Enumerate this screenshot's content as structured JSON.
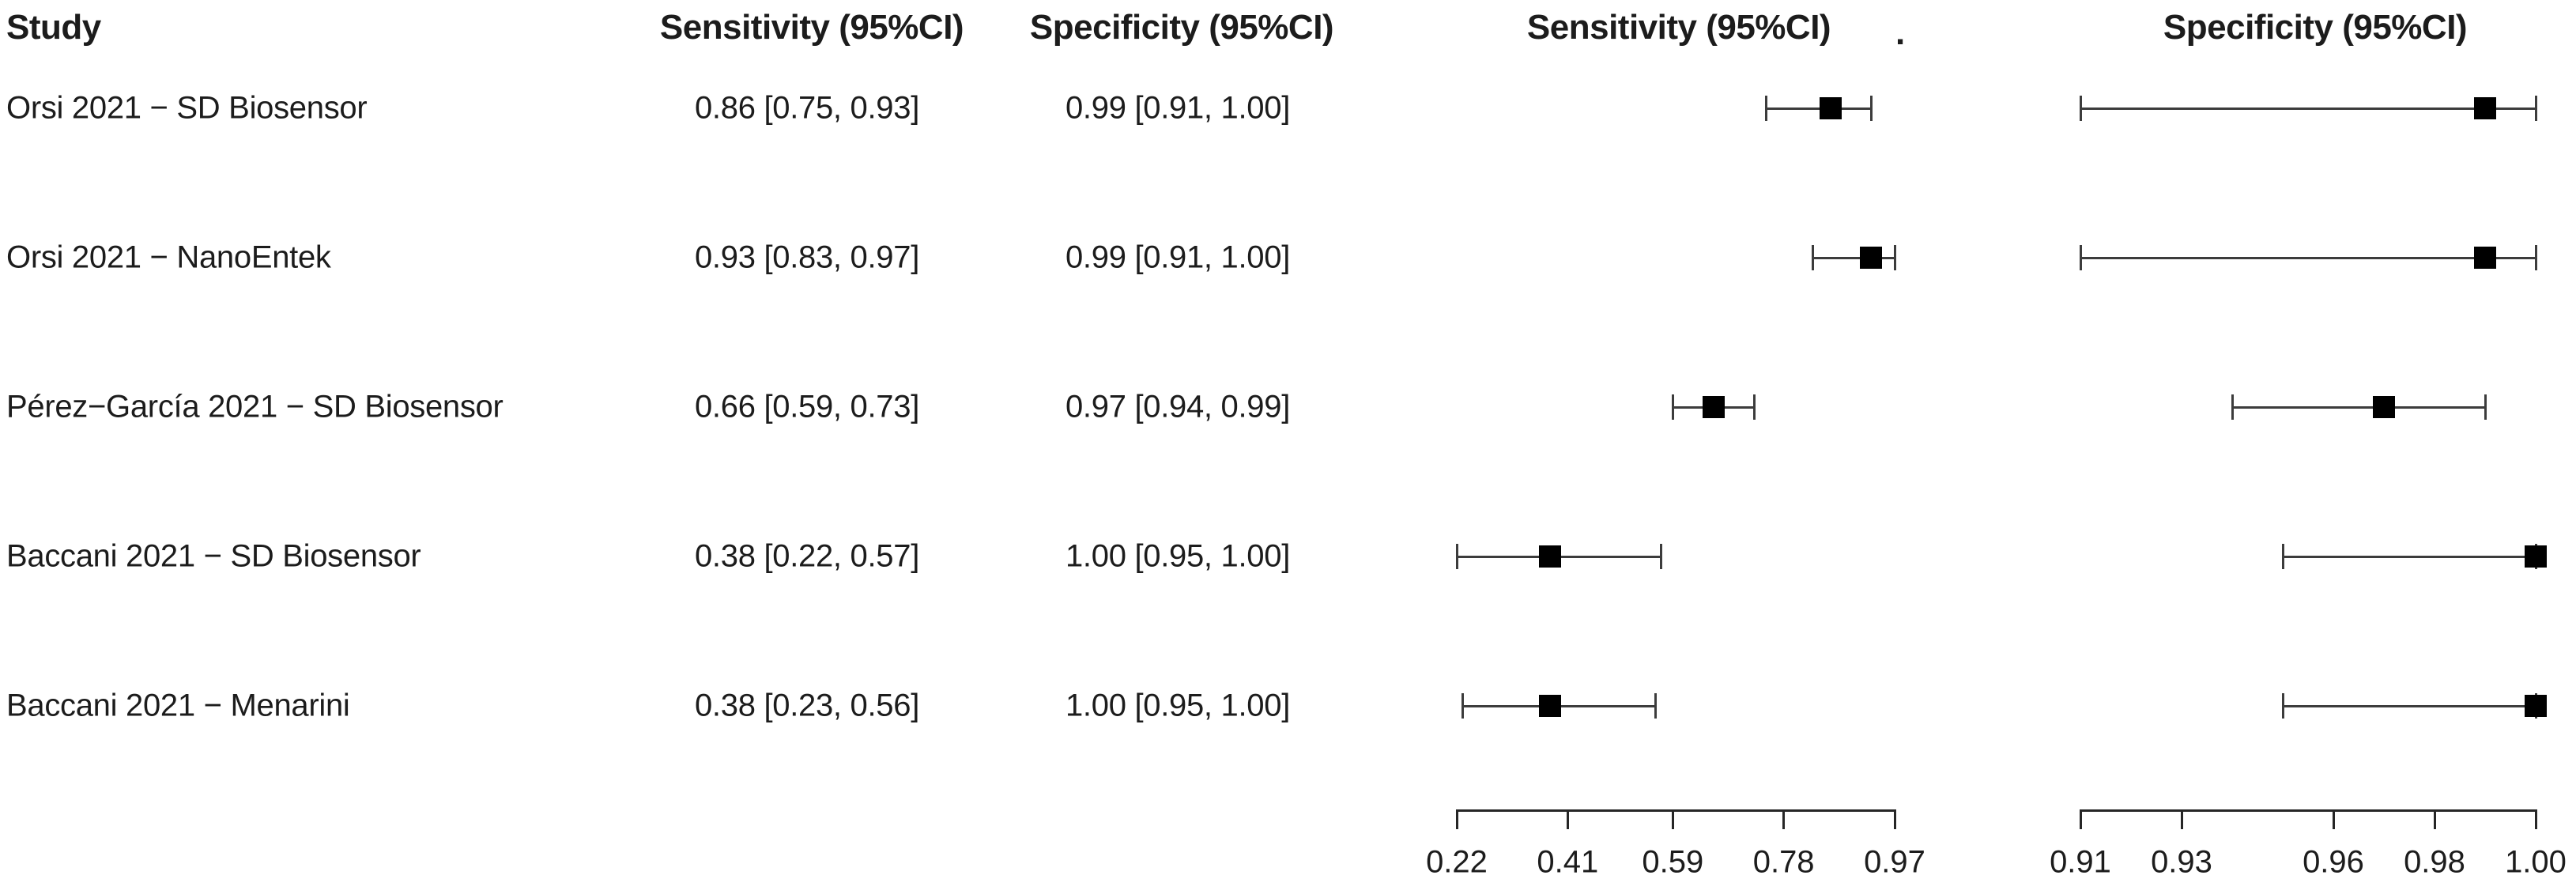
{
  "header": {
    "study": "Study",
    "sensitivity_text_col": "Sensitivity (95%CI)",
    "specificity_text_col": "Specificity (95%CI)",
    "sensitivity_plot_col": "Sensitivity (95%CI)",
    "stray_dot": ".",
    "specificity_plot_col": "Specificity (95%CI)"
  },
  "colors": {
    "background": "#ffffff",
    "text": "#1c1c1c",
    "ci_line": "#3c3c3c",
    "marker": "#000000",
    "axis": "#262626"
  },
  "chart_data": {
    "type": "forest",
    "title": "",
    "columns": [
      "Study",
      "Sensitivity (95%CI)",
      "Specificity (95%CI)"
    ],
    "studies": [
      "Orsi 2021 − SD Biosensor",
      "Orsi 2021 − NanoEntek",
      "Pérez−García 2021 − SD Biosensor",
      "Baccani 2021 − SD Biosensor",
      "Baccani 2021 − Menarini"
    ],
    "series": [
      {
        "name": "Sensitivity (95%CI)",
        "estimates": [
          0.86,
          0.93,
          0.66,
          0.38,
          0.38
        ],
        "ci_lower": [
          0.75,
          0.83,
          0.59,
          0.22,
          0.23
        ],
        "ci_upper": [
          0.93,
          0.97,
          0.73,
          0.57,
          0.56
        ],
        "labels": [
          "0.86 [0.75, 0.93]",
          "0.93 [0.83, 0.97]",
          "0.66 [0.59, 0.73]",
          "0.38 [0.22, 0.57]",
          "0.38 [0.23, 0.56]"
        ],
        "xlim": [
          0.22,
          0.97
        ],
        "axis_ticks": [
          0.22,
          0.41,
          0.59,
          0.78,
          0.97
        ],
        "axis_tick_labels": [
          "0.22",
          "0.41",
          "0.59",
          "0.78",
          "0.97"
        ]
      },
      {
        "name": "Specificity (95%CI)",
        "estimates": [
          0.99,
          0.99,
          0.97,
          1.0,
          1.0
        ],
        "ci_lower": [
          0.91,
          0.91,
          0.94,
          0.95,
          0.95
        ],
        "ci_upper": [
          1.0,
          1.0,
          0.99,
          1.0,
          1.0
        ],
        "labels": [
          "0.99 [0.91, 1.00]",
          "0.99 [0.91, 1.00]",
          "0.97 [0.94, 0.99]",
          "1.00 [0.95, 1.00]",
          "1.00 [0.95, 1.00]"
        ],
        "xlim": [
          0.91,
          1.0
        ],
        "axis_ticks": [
          0.91,
          0.93,
          0.96,
          0.98,
          1.0
        ],
        "axis_tick_labels": [
          "0.91",
          "0.93",
          "0.96",
          "0.98",
          "1.00"
        ]
      }
    ],
    "legend": "none",
    "grid": false
  }
}
